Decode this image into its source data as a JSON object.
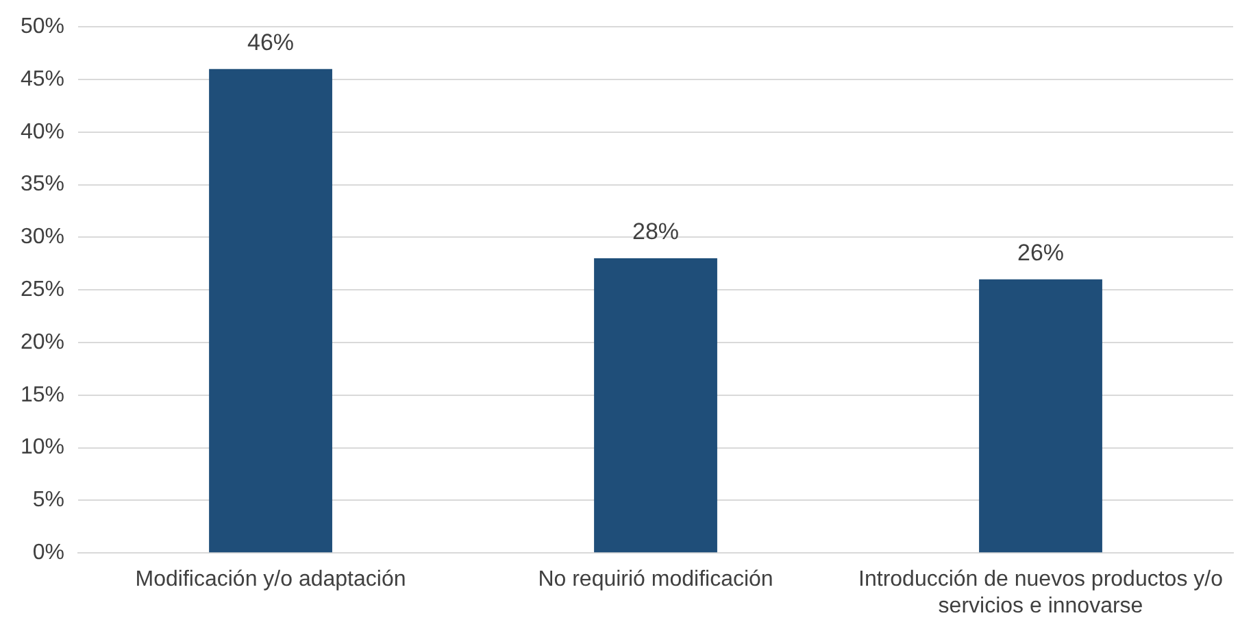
{
  "chart_data": {
    "type": "bar",
    "categories": [
      "Modificación y/o adaptación",
      "No requirió modificación",
      "Introducción de nuevos productos y/o servicios e innovarse"
    ],
    "values": [
      46,
      28,
      26
    ],
    "color": "#1f4e79",
    "ylim": [
      0,
      50
    ],
    "yticks": [
      {
        "value": 0,
        "label": "0%"
      },
      {
        "value": 5,
        "label": "5%"
      },
      {
        "value": 10,
        "label": "10%"
      },
      {
        "value": 15,
        "label": "15%"
      },
      {
        "value": 20,
        "label": "20%"
      },
      {
        "value": 25,
        "label": "25%"
      },
      {
        "value": 30,
        "label": "30%"
      },
      {
        "value": 35,
        "label": "35%"
      },
      {
        "value": 40,
        "label": "40%"
      },
      {
        "value": 45,
        "label": "45%"
      },
      {
        "value": 50,
        "label": "50%"
      }
    ],
    "value_labels": [
      "46%",
      "28%",
      "26%"
    ],
    "grid": "y",
    "legend": false
  }
}
